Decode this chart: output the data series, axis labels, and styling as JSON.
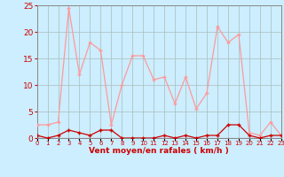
{
  "x_hours": [
    0,
    1,
    2,
    3,
    4,
    5,
    6,
    7,
    8,
    9,
    10,
    11,
    12,
    13,
    14,
    15,
    16,
    17,
    18,
    19,
    20,
    21,
    22,
    23
  ],
  "rafales": [
    2.5,
    2.5,
    3.0,
    24.5,
    12.0,
    18.0,
    16.5,
    2.5,
    10.0,
    15.5,
    15.5,
    11.0,
    11.5,
    6.5,
    11.5,
    5.5,
    8.5,
    21.0,
    18.0,
    19.5,
    1.0,
    0.5,
    3.0,
    0.5
  ],
  "vent_moyen": [
    0.5,
    0.0,
    0.5,
    1.5,
    1.0,
    0.5,
    1.5,
    1.5,
    0.0,
    0.0,
    0.0,
    0.0,
    0.5,
    0.0,
    0.5,
    0.0,
    0.5,
    0.5,
    2.5,
    2.5,
    0.5,
    0.0,
    0.5,
    0.5
  ],
  "ylim": [
    0,
    25
  ],
  "yticks": [
    0,
    5,
    10,
    15,
    20,
    25
  ],
  "xlabel": "Vent moyen/en rafales ( km/h )",
  "bg_color": "#cceeff",
  "grid_color": "#aabbbb",
  "line_color_rafales": "#ff9999",
  "line_color_moyen": "#cc0000",
  "xlabel_color": "#cc0000",
  "tick_color": "#cc0000",
  "axis_line_color": "#888888"
}
